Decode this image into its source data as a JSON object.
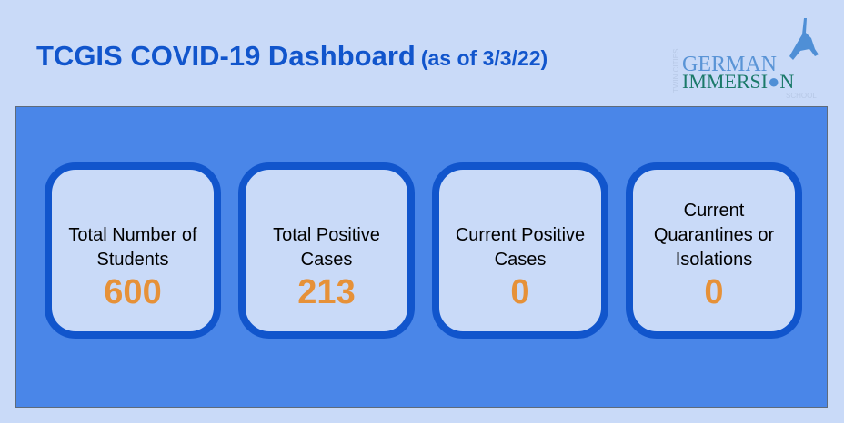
{
  "header": {
    "title": "TCGIS COVID-19 Dashboard",
    "as_of": "(as of 3/3/22)"
  },
  "logo": {
    "text_top": "TWIN CITIES",
    "line1": "GERMAN",
    "line2": "IMMERSION",
    "line3": "SCHOOL"
  },
  "colors": {
    "background": "#c9daf8",
    "panel": "#4a86e8",
    "card_border": "#1155cc",
    "value": "#e69138",
    "title": "#1155cc"
  },
  "cards": [
    {
      "label": "Total Number of Students",
      "value": "600"
    },
    {
      "label": "Total Positive Cases",
      "value": "213"
    },
    {
      "label": "Current Positive Cases",
      "value": "0"
    },
    {
      "label": "Current Quarantines or Isolations",
      "value": "0"
    }
  ]
}
